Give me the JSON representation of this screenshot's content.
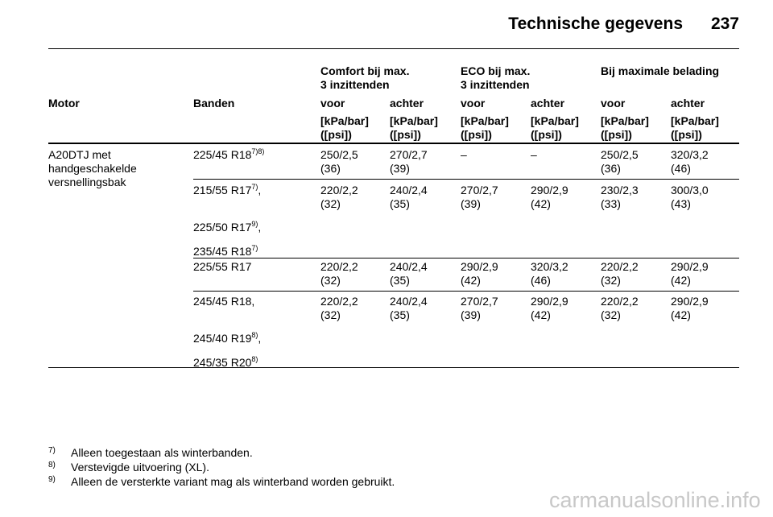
{
  "header": {
    "title": "Technische gegevens",
    "page": "237"
  },
  "table": {
    "groups": [
      "Comfort bij max.\n3 inzittenden",
      "ECO bij max.\n3 inzittenden",
      "Bij maximale belading"
    ],
    "columns": [
      "Motor",
      "Banden",
      "voor",
      "achter",
      "voor",
      "achter",
      "voor",
      "achter"
    ],
    "units": [
      "[kPa/bar]\n([psi])",
      "[kPa/bar]\n([psi])",
      "[kPa/bar]\n([psi])",
      "[kPa/bar]\n([psi])",
      "[kPa/bar]\n([psi])",
      "[kPa/bar]\n([psi])"
    ],
    "motor": "A20DTJ met\nhandgeschakelde\nversnellingsbak",
    "rows": [
      {
        "tyres": [
          {
            "size": "225/45 R18",
            "note": "7)8)"
          }
        ],
        "values": [
          {
            "main": "250/2,5",
            "psi": "(36)"
          },
          {
            "main": "270/2,7",
            "psi": "(39)"
          },
          {
            "main": "–"
          },
          {
            "main": "–"
          },
          {
            "main": "250/2,5",
            "psi": "(36)"
          },
          {
            "main": "320/3,2",
            "psi": "(46)"
          }
        ]
      },
      {
        "tyres": [
          {
            "size": "215/55 R17",
            "note": "7)",
            "suffix": ","
          },
          {
            "size": "225/50 R17",
            "note": "9)",
            "suffix": ","
          },
          {
            "size": "235/45 R18",
            "note": "7)"
          }
        ],
        "values": [
          {
            "main": "220/2,2",
            "psi": "(32)"
          },
          {
            "main": "240/2,4",
            "psi": "(35)"
          },
          {
            "main": "270/2,7",
            "psi": "(39)"
          },
          {
            "main": "290/2,9",
            "psi": "(42)"
          },
          {
            "main": "230/2,3",
            "psi": "(33)"
          },
          {
            "main": "300/3,0",
            "psi": "(43)"
          }
        ]
      },
      {
        "tyres": [
          {
            "size": "225/55 R17"
          }
        ],
        "values": [
          {
            "main": "220/2,2",
            "psi": "(32)"
          },
          {
            "main": "240/2,4",
            "psi": "(35)"
          },
          {
            "main": "290/2,9",
            "psi": "(42)"
          },
          {
            "main": "320/3,2",
            "psi": "(46)"
          },
          {
            "main": "220/2,2",
            "psi": "(32)"
          },
          {
            "main": "290/2,9",
            "psi": "(42)"
          }
        ]
      },
      {
        "tyres": [
          {
            "size": "245/45 R18,"
          },
          {
            "size": "245/40 R19",
            "note": "8)",
            "suffix": ","
          },
          {
            "size": "245/35 R20",
            "note": "8)"
          }
        ],
        "values": [
          {
            "main": "220/2,2",
            "psi": "(32)"
          },
          {
            "main": "240/2,4",
            "psi": "(35)"
          },
          {
            "main": "270/2,7",
            "psi": "(39)"
          },
          {
            "main": "290/2,9",
            "psi": "(42)"
          },
          {
            "main": "220/2,2",
            "psi": "(32)"
          },
          {
            "main": "290/2,9",
            "psi": "(42)"
          }
        ]
      }
    ]
  },
  "footnotes": [
    {
      "mark": "7)",
      "text": "Alleen toegestaan als winterbanden."
    },
    {
      "mark": "8)",
      "text": "Verstevigde uitvoering (XL)."
    },
    {
      "mark": "9)",
      "text": "Alleen de versterkte variant mag als winterband worden gebruikt."
    }
  ],
  "watermark": "carmanualsonline.info"
}
